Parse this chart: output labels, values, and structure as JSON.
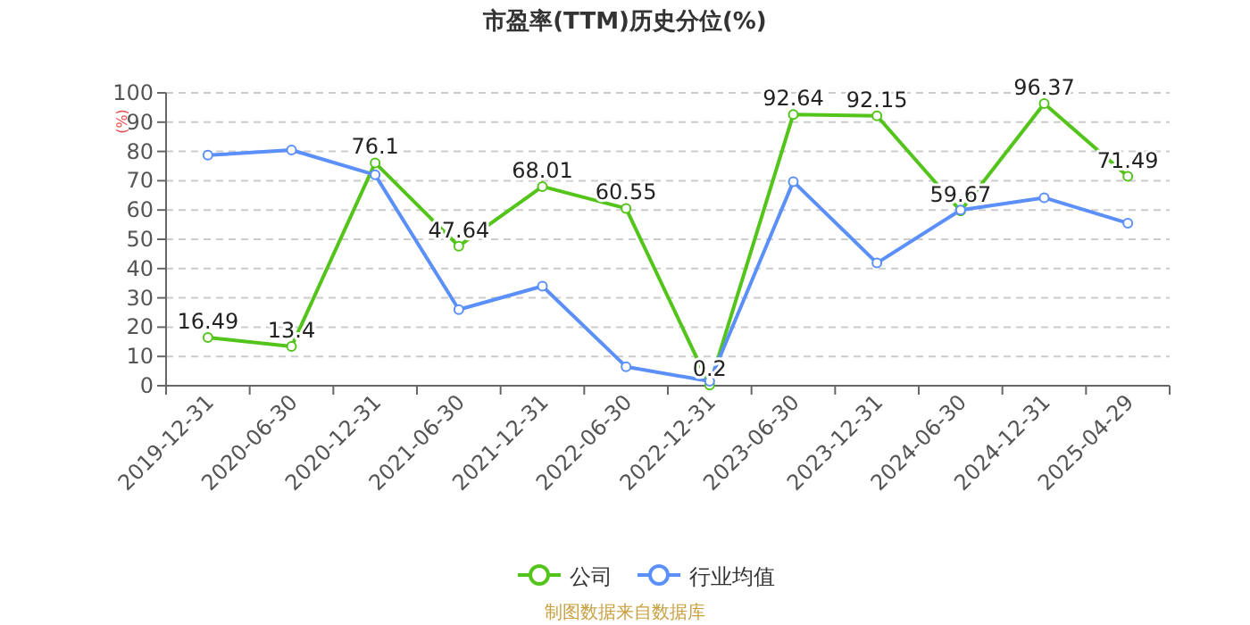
{
  "chart_data": {
    "type": "line",
    "title": "市盈率(TTM)历史分位(%)",
    "ylabel": "(%)",
    "categories": [
      "2019-12-31",
      "2020-06-30",
      "2020-12-31",
      "2021-06-30",
      "2021-12-31",
      "2022-06-30",
      "2022-12-31",
      "2023-06-30",
      "2023-12-31",
      "2024-06-30",
      "2024-12-31",
      "2025-04-29"
    ],
    "series": [
      {
        "name": "公司",
        "color": "#52c41a",
        "values": [
          16.49,
          13.4,
          76.1,
          47.64,
          68.01,
          60.55,
          0.2,
          92.64,
          92.15,
          59.67,
          96.37,
          71.49
        ],
        "value_labels": [
          "16.49",
          "13.4",
          "76.1",
          "47.64",
          "68.01",
          "60.55",
          "0.2",
          "92.64",
          "92.15",
          "59.67",
          "96.37",
          "71.49"
        ]
      },
      {
        "name": "行业均值",
        "color": "#5b8ff9",
        "values": [
          78.7,
          80.5,
          72,
          26,
          34,
          6.5,
          1.5,
          69.7,
          41.9,
          60,
          64.2,
          55.5
        ]
      }
    ],
    "ylim": [
      0,
      100
    ],
    "yticks": [
      0,
      10,
      20,
      30,
      40,
      50,
      60,
      70,
      80,
      90,
      100
    ],
    "grid": "y",
    "legend": "bottom",
    "marker": "circle",
    "line_style": "solid",
    "annotations": [
      "制图数据来自数据库"
    ]
  }
}
